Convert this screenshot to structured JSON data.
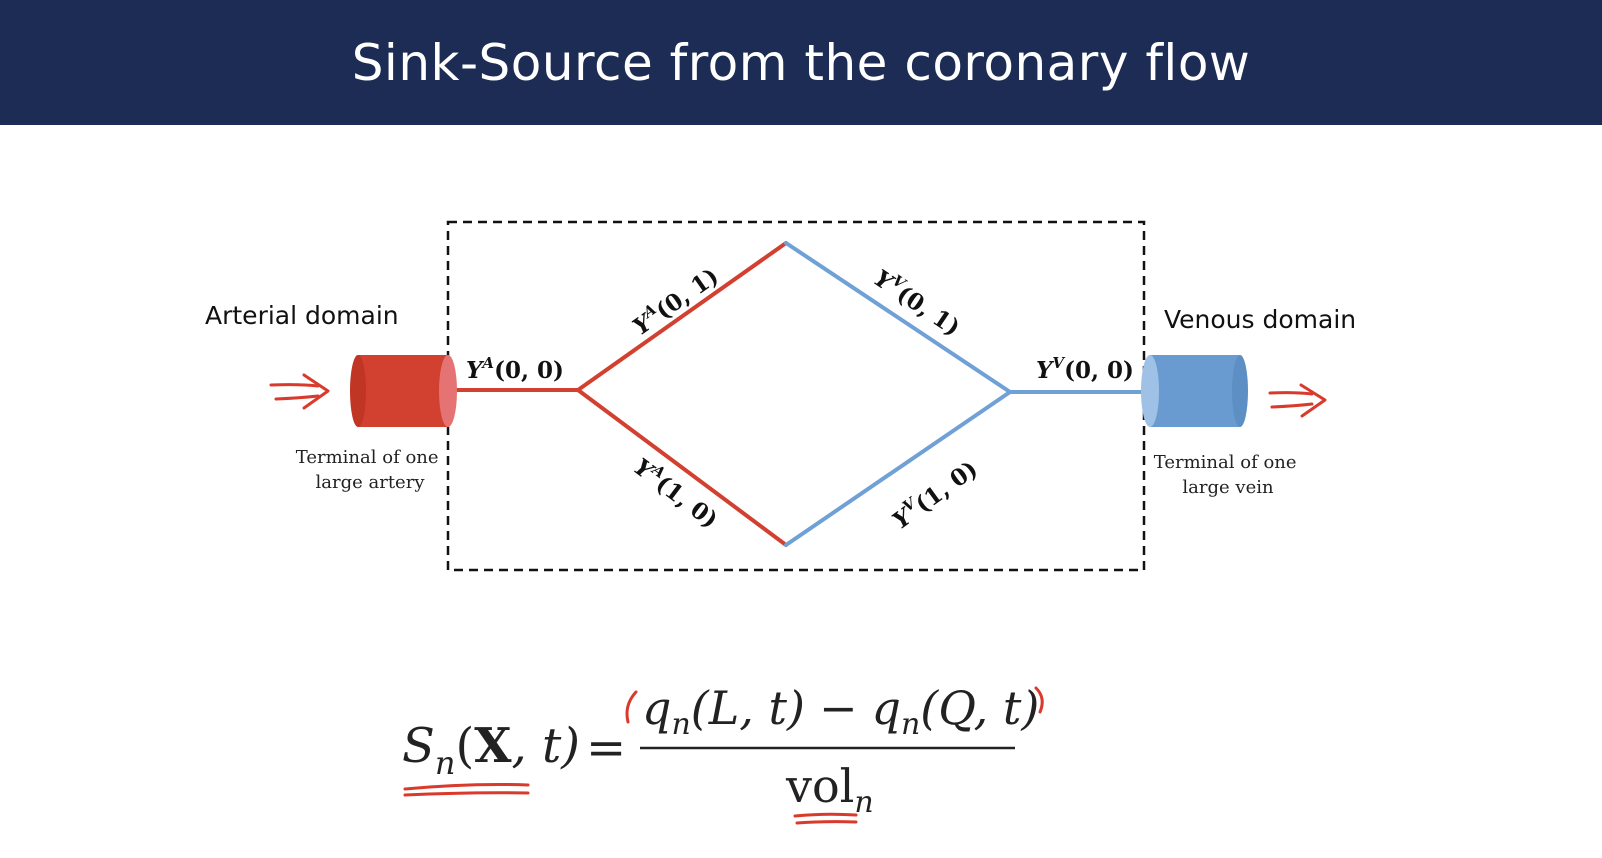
{
  "title": "Sink-Source from the coronary flow",
  "diagram": {
    "arterial_domain_label": "Arterial domain",
    "venous_domain_label": "Venous domain",
    "artery_caption_line1": "Terminal of one",
    "artery_caption_line2": "large artery",
    "vein_caption_line1": "Terminal of one",
    "vein_caption_line2": "large vein",
    "edges": {
      "ya00": {
        "base": "Y",
        "sup": "A",
        "args": "(0, 0)"
      },
      "ya01": {
        "base": "Y",
        "sup": "A",
        "args": "(0, 1)"
      },
      "ya10": {
        "base": "Y",
        "sup": "A",
        "args": "(1, 0)"
      },
      "yv00": {
        "base": "Y",
        "sup": "V",
        "args": "(0, 0)"
      },
      "yv01": {
        "base": "Y",
        "sup": "V",
        "args": "(0, 1)"
      },
      "yv10": {
        "base": "Y",
        "sup": "V",
        "args": "(1, 0)"
      }
    },
    "colors": {
      "arterial": "#d2402f",
      "venous": "#6fa0d6",
      "annotation": "#d93a2b"
    }
  },
  "equation": {
    "lhs_S": "S",
    "lhs_sub": "n",
    "lhs_args_open": "(",
    "lhs_X": "X",
    "lhs_args_rest": ", t)",
    "equals": "=",
    "num_q1": "q",
    "num_q1_sub": "n",
    "num_q1_args": "(L, t)",
    "minus": "−",
    "num_q2": "q",
    "num_q2_sub": "n",
    "num_q2_args": "(Q, t)",
    "den_vol": "vol",
    "den_sub": "n"
  }
}
